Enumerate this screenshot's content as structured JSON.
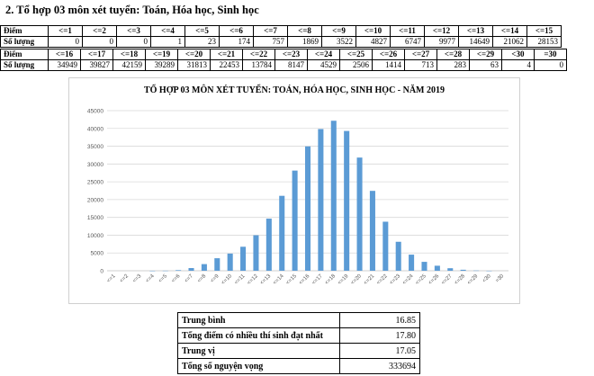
{
  "heading": "2. Tổ hợp 03 môn xét tuyển: Toán, Hóa học, Sinh học",
  "table1": {
    "row_label_score": "Điểm",
    "row_label_count": "Số lượng",
    "scores": [
      "<=1",
      "<=2",
      "<=3",
      "<=4",
      "<=5",
      "<=6",
      "<=7",
      "<=8",
      "<=9",
      "<=10",
      "<=11",
      "<=12",
      "<=13",
      "<=14",
      "<=15"
    ],
    "counts": [
      "0",
      "0",
      "0",
      "1",
      "23",
      "174",
      "757",
      "1869",
      "3522",
      "4827",
      "6747",
      "9977",
      "14649",
      "21062",
      "28153"
    ]
  },
  "table2": {
    "row_label_score": "Điểm",
    "row_label_count": "Số lượng",
    "scores": [
      "<=16",
      "<=17",
      "<=18",
      "<=19",
      "<=20",
      "<=21",
      "<=22",
      "<=23",
      "<=24",
      "<=25",
      "<=26",
      "<=27",
      "<=28",
      "<=29",
      "<30",
      "=30"
    ],
    "counts": [
      "34949",
      "39827",
      "42159",
      "39289",
      "31813",
      "22453",
      "13784",
      "8147",
      "4529",
      "2506",
      "1414",
      "713",
      "283",
      "63",
      "4",
      "0"
    ]
  },
  "chart_data": {
    "type": "bar",
    "title": "TỔ HỢP 03 MÔN XÉT TUYỂN: TOÁN, HÓA HỌC, SINH HỌC - NĂM 2019",
    "categories": [
      "<=1",
      "<=2",
      "<=3",
      "<=4",
      "<=5",
      "<=6",
      "<=7",
      "<=8",
      "<=9",
      "<=10",
      "<=11",
      "<=12",
      "<=13",
      "<=14",
      "<=15",
      "<=16",
      "<=17",
      "<=18",
      "<=19",
      "<=20",
      "<=21",
      "<=22",
      "<=23",
      "<=24",
      "<=25",
      "<=26",
      "<=27",
      "<=28",
      "<=29",
      "<30",
      "=30"
    ],
    "values": [
      0,
      0,
      0,
      1,
      23,
      174,
      757,
      1869,
      3522,
      4827,
      6747,
      9977,
      14649,
      21062,
      28153,
      34949,
      39827,
      42159,
      39289,
      31813,
      22453,
      13784,
      8147,
      4529,
      2506,
      1414,
      713,
      283,
      63,
      4,
      0
    ],
    "yticks": [
      0,
      5000,
      10000,
      15000,
      20000,
      25000,
      30000,
      35000,
      40000,
      45000
    ],
    "ylim": [
      0,
      45000
    ],
    "grid": true,
    "color": "#5b9bd5"
  },
  "stats": [
    {
      "label": "Trung bình",
      "value": "16.85"
    },
    {
      "label": "Tổng điểm có nhiều thí sinh đạt nhất",
      "value": "17.80"
    },
    {
      "label": "Trung vị",
      "value": "17.05"
    },
    {
      "label": "Tổng số nguyện vọng",
      "value": "333694"
    }
  ]
}
